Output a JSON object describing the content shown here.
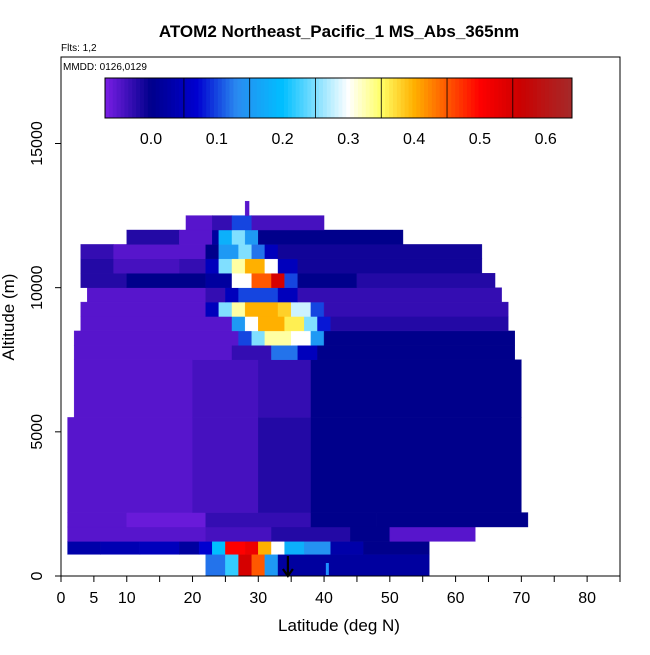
{
  "chart_data": {
    "type": "heatmap",
    "title": "ATOM2 Northeast_Pacific_1 MS_Abs_365nm",
    "flights_note": "Flts: 1,2",
    "dates_note": "MMDD: 0126,0129",
    "xlabel": "Latitude (deg N)",
    "ylabel": "Altitude (m)",
    "xlim": [
      0,
      85
    ],
    "ylim": [
      0,
      18000
    ],
    "x_ticks": [
      0,
      5,
      10,
      20,
      30,
      40,
      50,
      60,
      70,
      80
    ],
    "x_minor_ticks": [
      15,
      25,
      35,
      45,
      55,
      65,
      75,
      85
    ],
    "y_ticks": [
      0,
      5000,
      10000,
      15000
    ],
    "colorbar": {
      "range": [
        -0.07,
        0.64
      ],
      "ticks": [
        0.0,
        0.1,
        0.2,
        0.3,
        0.4,
        0.5,
        0.6
      ],
      "tick_labels": [
        "0.0",
        "0.1",
        "0.2",
        "0.3",
        "0.4",
        "0.5",
        "0.6"
      ],
      "stops": [
        {
          "v": -0.07,
          "color": "#7a1ee6"
        },
        {
          "v": 0.0,
          "color": "#00008b"
        },
        {
          "v": 0.07,
          "color": "#0000d0"
        },
        {
          "v": 0.13,
          "color": "#2a8af0"
        },
        {
          "v": 0.2,
          "color": "#00bfff"
        },
        {
          "v": 0.3,
          "color": "#ffffff"
        },
        {
          "v": 0.35,
          "color": "#ffff66"
        },
        {
          "v": 0.4,
          "color": "#ffb000"
        },
        {
          "v": 0.5,
          "color": "#ff0000"
        },
        {
          "v": 0.56,
          "color": "#cc0000"
        },
        {
          "v": 0.64,
          "color": "#a52a2a"
        }
      ]
    },
    "bands": [
      {
        "y0": 0,
        "y1": 750,
        "segs": [
          [
            22,
            25,
            0.12
          ],
          [
            25,
            27,
            0.22
          ],
          [
            27,
            29,
            0.55
          ],
          [
            29,
            31,
            0.45
          ],
          [
            31,
            33,
            0.15
          ],
          [
            33,
            56,
            0.02
          ]
        ]
      },
      {
        "y0": 750,
        "y1": 1200,
        "segs": [
          [
            1,
            6,
            0.03
          ],
          [
            6,
            12,
            0.04
          ],
          [
            12,
            18,
            0.05
          ],
          [
            18,
            21,
            0.02
          ],
          [
            21,
            23,
            0.07
          ],
          [
            23,
            25,
            0.2
          ],
          [
            25,
            28,
            0.5
          ],
          [
            28,
            30,
            0.52
          ],
          [
            30,
            32,
            0.4
          ],
          [
            32,
            34,
            0.3
          ],
          [
            34,
            37,
            0.18
          ],
          [
            37,
            41,
            0.14
          ],
          [
            41,
            46,
            0.03
          ],
          [
            46,
            56,
            0.0
          ]
        ]
      },
      {
        "y0": 1200,
        "y1": 1700,
        "segs": [
          [
            1,
            22,
            -0.05
          ],
          [
            22,
            32,
            -0.04
          ],
          [
            32,
            44,
            -0.02
          ],
          [
            44,
            50,
            0.0
          ],
          [
            50,
            63,
            -0.05
          ]
        ]
      },
      {
        "y0": 1700,
        "y1": 2200,
        "segs": [
          [
            1,
            10,
            -0.05
          ],
          [
            10,
            22,
            -0.06
          ],
          [
            22,
            38,
            -0.03
          ],
          [
            38,
            48,
            0.0
          ],
          [
            48,
            71,
            0.0
          ]
        ]
      },
      {
        "y0": 2200,
        "y1": 5500,
        "segs": [
          [
            1,
            20,
            -0.05
          ],
          [
            20,
            30,
            -0.04
          ],
          [
            30,
            38,
            -0.02
          ],
          [
            38,
            70,
            0.0
          ]
        ]
      },
      {
        "y0": 5500,
        "y1": 7500,
        "segs": [
          [
            2,
            20,
            -0.05
          ],
          [
            20,
            30,
            -0.04
          ],
          [
            30,
            38,
            -0.03
          ],
          [
            38,
            70,
            0.0
          ]
        ]
      },
      {
        "y0": 7500,
        "y1": 8000,
        "segs": [
          [
            2,
            26,
            -0.05
          ],
          [
            26,
            32,
            -0.03
          ],
          [
            32,
            36,
            0.12
          ],
          [
            36,
            39,
            0.05
          ],
          [
            39,
            69,
            0.0
          ]
        ]
      },
      {
        "y0": 8000,
        "y1": 8500,
        "segs": [
          [
            2,
            27,
            -0.05
          ],
          [
            27,
            29,
            0.1
          ],
          [
            29,
            31,
            0.25
          ],
          [
            31,
            35,
            0.33
          ],
          [
            35,
            38,
            0.3
          ],
          [
            38,
            40,
            0.15
          ],
          [
            40,
            69,
            0.0
          ]
        ]
      },
      {
        "y0": 8500,
        "y1": 9000,
        "segs": [
          [
            3,
            26,
            -0.05
          ],
          [
            26,
            28,
            0.15
          ],
          [
            28,
            30,
            0.3
          ],
          [
            30,
            34,
            0.4
          ],
          [
            34,
            37,
            0.36
          ],
          [
            37,
            39,
            0.25
          ],
          [
            39,
            41,
            0.08
          ],
          [
            41,
            68,
            -0.02
          ]
        ]
      },
      {
        "y0": 9000,
        "y1": 9500,
        "segs": [
          [
            3,
            22,
            -0.05
          ],
          [
            22,
            24,
            0.05
          ],
          [
            24,
            26,
            0.25
          ],
          [
            26,
            28,
            0.33
          ],
          [
            28,
            33,
            0.4
          ],
          [
            33,
            35,
            0.38
          ],
          [
            35,
            38,
            0.28
          ],
          [
            38,
            40,
            0.1
          ],
          [
            40,
            68,
            -0.03
          ]
        ]
      },
      {
        "y0": 9500,
        "y1": 10000,
        "segs": [
          [
            4,
            22,
            -0.05
          ],
          [
            22,
            25,
            -0.03
          ],
          [
            25,
            27,
            0.05
          ],
          [
            27,
            33,
            0.1
          ],
          [
            33,
            36,
            0.05
          ],
          [
            36,
            67,
            -0.03
          ]
        ]
      },
      {
        "y0": 10000,
        "y1": 10500,
        "segs": [
          [
            3,
            10,
            -0.02
          ],
          [
            10,
            22,
            0.0
          ],
          [
            22,
            26,
            0.02
          ],
          [
            26,
            29,
            0.3
          ],
          [
            29,
            32,
            0.45
          ],
          [
            32,
            34,
            0.55
          ],
          [
            34,
            36,
            0.1
          ],
          [
            36,
            45,
            0.0
          ],
          [
            45,
            66,
            -0.02
          ]
        ]
      },
      {
        "y0": 10500,
        "y1": 11000,
        "segs": [
          [
            3,
            8,
            -0.02
          ],
          [
            8,
            18,
            -0.04
          ],
          [
            18,
            22,
            -0.03
          ],
          [
            22,
            24,
            0.05
          ],
          [
            24,
            26,
            0.25
          ],
          [
            26,
            28,
            0.33
          ],
          [
            28,
            31,
            0.4
          ],
          [
            31,
            33,
            0.3
          ],
          [
            33,
            36,
            0.05
          ],
          [
            36,
            64,
            -0.01
          ]
        ]
      },
      {
        "y0": 11000,
        "y1": 11500,
        "segs": [
          [
            3,
            8,
            -0.03
          ],
          [
            8,
            22,
            -0.05
          ],
          [
            22,
            24,
            0.0
          ],
          [
            24,
            27,
            0.15
          ],
          [
            27,
            29,
            0.25
          ],
          [
            29,
            31,
            0.12
          ],
          [
            31,
            33,
            0.05
          ],
          [
            33,
            64,
            -0.01
          ]
        ]
      },
      {
        "y0": 11500,
        "y1": 12000,
        "segs": [
          [
            10,
            18,
            -0.02
          ],
          [
            18,
            23,
            -0.05
          ],
          [
            23,
            24,
            0.02
          ],
          [
            24,
            26,
            0.18
          ],
          [
            26,
            28,
            0.25
          ],
          [
            28,
            30,
            0.15
          ],
          [
            30,
            52,
            0.0
          ]
        ]
      },
      {
        "y0": 12000,
        "y1": 12500,
        "segs": [
          [
            19,
            23,
            -0.05
          ],
          [
            23,
            26,
            -0.03
          ],
          [
            26,
            29,
            0.1
          ],
          [
            29,
            40,
            -0.04
          ]
        ]
      },
      {
        "y0": 12500,
        "y1": 13000,
        "segs": [
          [
            28,
            28.6,
            -0.05
          ]
        ]
      }
    ],
    "markers": [
      {
        "lat": 34.5,
        "label": "down-arrow"
      },
      {
        "lat": 40.5,
        "label": "blue-tick"
      }
    ]
  }
}
